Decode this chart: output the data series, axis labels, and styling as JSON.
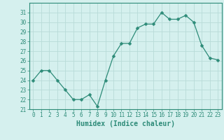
{
  "x": [
    0,
    1,
    2,
    3,
    4,
    5,
    6,
    7,
    8,
    9,
    10,
    11,
    12,
    13,
    14,
    15,
    16,
    17,
    18,
    19,
    20,
    21,
    22,
    23
  ],
  "y": [
    24.0,
    25.0,
    25.0,
    24.0,
    23.0,
    22.0,
    22.0,
    22.5,
    21.3,
    24.0,
    26.5,
    27.8,
    27.8,
    29.4,
    29.8,
    29.8,
    31.0,
    30.3,
    30.3,
    30.7,
    30.0,
    27.6,
    26.3,
    26.1
  ],
  "line_color": "#2d8b78",
  "marker": "D",
  "marker_size": 2.5,
  "bg_color": "#d5f0ee",
  "grid_color": "#b8dbd8",
  "xlabel": "Humidex (Indice chaleur)",
  "ylim": [
    21,
    32
  ],
  "yticks": [
    21,
    22,
    23,
    24,
    25,
    26,
    27,
    28,
    29,
    30,
    31
  ],
  "xticks": [
    0,
    1,
    2,
    3,
    4,
    5,
    6,
    7,
    8,
    9,
    10,
    11,
    12,
    13,
    14,
    15,
    16,
    17,
    18,
    19,
    20,
    21,
    22,
    23
  ],
  "tick_fontsize": 5.5,
  "label_fontsize": 7.0
}
